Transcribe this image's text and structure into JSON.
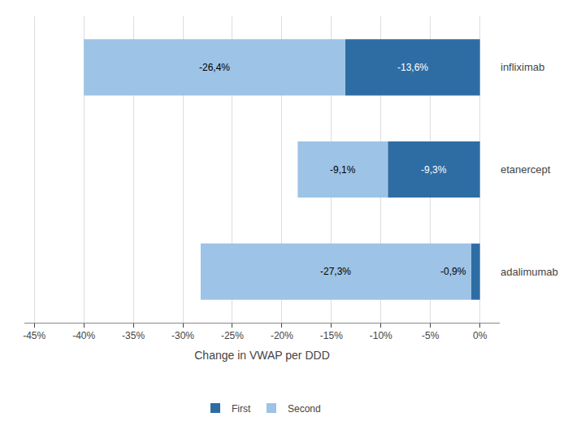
{
  "chart_data": {
    "type": "bar",
    "orientation": "horizontal",
    "stacked": true,
    "categories": [
      "infliximab",
      "etanercept",
      "adalimumab"
    ],
    "series": [
      {
        "name": "First",
        "color": "#2E6DA4",
        "values": [
          -13.6,
          -9.3,
          -0.9
        ],
        "value_labels": [
          "-13,6%",
          "-9,3%",
          "-0,9%"
        ]
      },
      {
        "name": "Second",
        "color": "#9DC3E6",
        "values": [
          -26.4,
          -9.1,
          -27.3
        ],
        "value_labels": [
          "-26,4%",
          "-9,1%",
          "-27,3%"
        ]
      }
    ],
    "xlabel": "Change in VWAP per DDD",
    "xlim": [
      -46,
      2
    ],
    "xticks": [
      {
        "value": -45,
        "label": "-45%"
      },
      {
        "value": -40,
        "label": "-40%"
      },
      {
        "value": -35,
        "label": "-35%"
      },
      {
        "value": -30,
        "label": "-30%"
      },
      {
        "value": -25,
        "label": "-25%"
      },
      {
        "value": -20,
        "label": "-20%"
      },
      {
        "value": -15,
        "label": "-15%"
      },
      {
        "value": -10,
        "label": "-10%"
      },
      {
        "value": -5,
        "label": "-5%"
      },
      {
        "value": 0,
        "label": "0%"
      }
    ],
    "grid": true,
    "data_labels": true,
    "legend": "bottom"
  }
}
